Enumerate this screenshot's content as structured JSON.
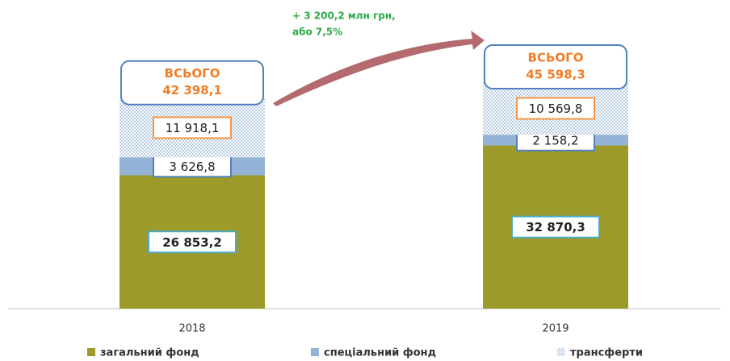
{
  "chart_data": {
    "type": "stacked_bar",
    "categories": [
      "2018",
      "2019"
    ],
    "series": [
      {
        "name": "загальний фонд",
        "color": "#9c9a2a",
        "values": [
          26853.2,
          32870.3
        ],
        "value_labels": [
          "26 853,2",
          "32 870,3"
        ],
        "label_border": "#4bacc6"
      },
      {
        "name": "спеціальний фонд",
        "color": "#95b3d7",
        "values": [
          3626.8,
          2158.2
        ],
        "value_labels": [
          "3 626,8",
          "2 158,2"
        ],
        "label_border": "#4f81bd"
      },
      {
        "name": "трансферти",
        "color": "#b8cce4",
        "hatch": true,
        "values": [
          11918.1,
          10569.8
        ],
        "value_labels": [
          "11 918,1",
          "10 569,8"
        ],
        "label_border": "#f79646"
      }
    ],
    "total_title": "ВСЬОГО",
    "totals": [
      42398.1,
      45598.3
    ],
    "total_labels": [
      "42 398,1",
      "45 598,3"
    ],
    "annotation": [
      "+ 3 200,2 млн грн,",
      "або 7,5%"
    ]
  }
}
